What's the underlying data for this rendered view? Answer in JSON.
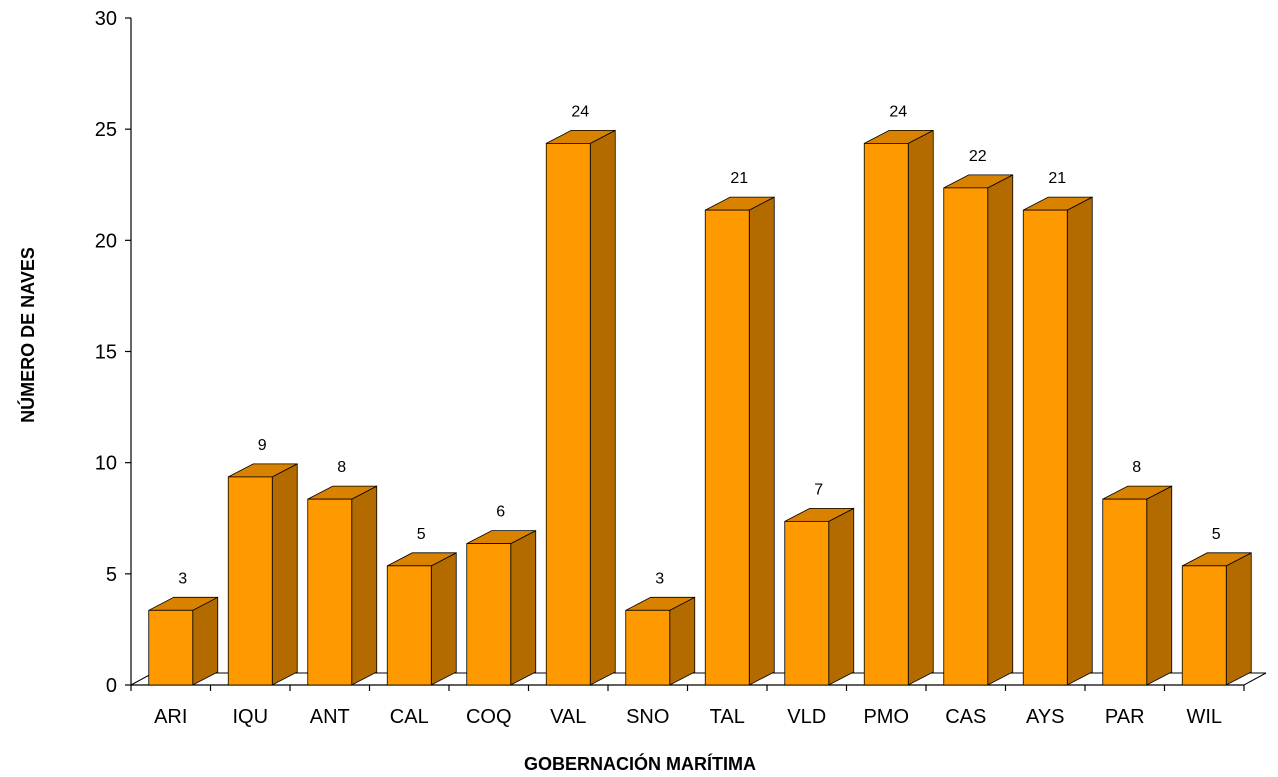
{
  "chart_data": {
    "type": "bar",
    "style": "3d-column",
    "title": "",
    "xlabel": "GOBERNACIÓN MARÍTIMA",
    "ylabel": "NÚMERO DE NAVES",
    "categories": [
      "ARI",
      "IQU",
      "ANT",
      "CAL",
      "COQ",
      "VAL",
      "SNO",
      "TAL",
      "VLD",
      "PMO",
      "CAS",
      "AYS",
      "PAR",
      "WIL"
    ],
    "values": [
      3,
      9,
      8,
      5,
      6,
      24,
      3,
      21,
      7,
      24,
      22,
      21,
      8,
      5
    ],
    "data_labels": [
      "3",
      "9",
      "8",
      "5",
      "6",
      "24",
      "3",
      "21",
      "7",
      "24",
      "22",
      "21",
      "8",
      "5"
    ],
    "yticks": [
      "0",
      "5",
      "10",
      "15",
      "20",
      "25",
      "30"
    ],
    "ylim": [
      0,
      30
    ],
    "grid": false,
    "legend": "none",
    "colors": {
      "bar_front": "#FF9900",
      "bar_side": "#B36B00",
      "bar_top": "#D98200",
      "axis": "#000000"
    }
  }
}
